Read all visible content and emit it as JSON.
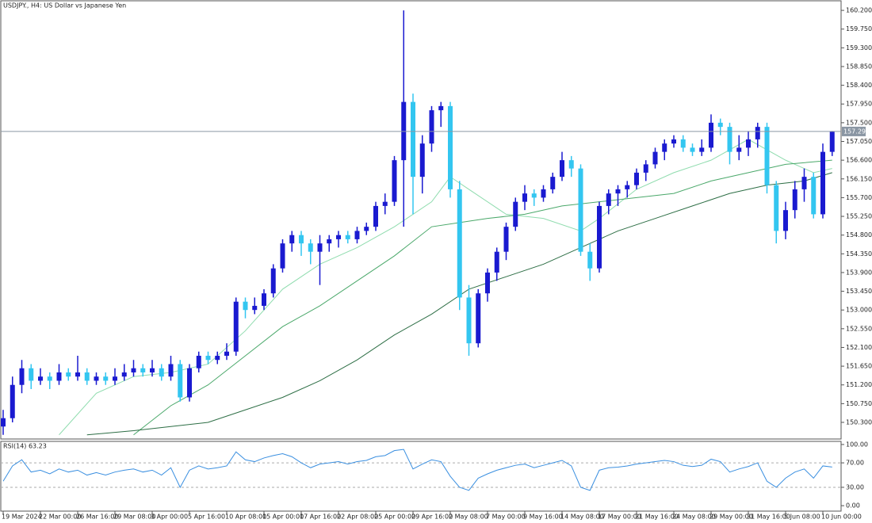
{
  "chart_data": [
    {
      "type": "candlestick",
      "title": "USDJPY., H4:  US Dollar vs Japanese Yen",
      "up_color": "#1a1ad0",
      "down_color": "#33c6f0",
      "categories": [
        "19 Mar 2024",
        null,
        null,
        null,
        "22 Mar 00:00",
        null,
        null,
        null,
        "26 Mar 16:00",
        null,
        null,
        null,
        "29 Mar 08:00",
        null,
        null,
        null,
        "3 Apr 00:00",
        null,
        null,
        null,
        "5 Apr 16:00",
        null,
        null,
        null,
        "10 Apr 08:00",
        null,
        null,
        null,
        "15 Apr 00:00",
        null,
        null,
        null,
        "17 Apr 16:00",
        null,
        null,
        null,
        "22 Apr 08:00",
        null,
        null,
        null,
        "25 Apr 00:00",
        null,
        null,
        null,
        "29 Apr 16:00",
        null,
        null,
        null,
        "2 May 08:00",
        null,
        null,
        null,
        "7 May 00:00",
        null,
        null,
        null,
        "9 May 16:00",
        null,
        null,
        null,
        "14 May 08:00",
        null,
        null,
        null,
        "17 May 00:00",
        null,
        null,
        null,
        "21 May 16:00",
        null,
        null,
        null,
        "24 May 08:00",
        null,
        null,
        null,
        "29 May 00:00",
        null,
        null,
        null,
        "31 May 16:00",
        null,
        null,
        null,
        "5 Jun 08:00",
        null,
        null,
        null,
        "10 Jun 00:00",
        null
      ],
      "candles": [
        [
          150.2,
          150.6,
          150.0,
          150.4
        ],
        [
          150.4,
          151.4,
          150.3,
          151.2
        ],
        [
          151.2,
          151.8,
          151.0,
          151.6
        ],
        [
          151.6,
          151.7,
          151.1,
          151.3
        ],
        [
          151.3,
          151.6,
          151.2,
          151.4
        ],
        [
          151.4,
          151.5,
          151.1,
          151.3
        ],
        [
          151.3,
          151.7,
          151.2,
          151.5
        ],
        [
          151.5,
          151.6,
          151.3,
          151.4
        ],
        [
          151.4,
          151.9,
          151.3,
          151.5
        ],
        [
          151.5,
          151.6,
          151.2,
          151.3
        ],
        [
          151.3,
          151.5,
          151.2,
          151.4
        ],
        [
          151.4,
          151.5,
          151.2,
          151.3
        ],
        [
          151.3,
          151.6,
          151.2,
          151.4
        ],
        [
          151.4,
          151.7,
          151.3,
          151.5
        ],
        [
          151.5,
          151.8,
          151.4,
          151.6
        ],
        [
          151.6,
          151.7,
          151.4,
          151.5
        ],
        [
          151.5,
          151.8,
          151.4,
          151.6
        ],
        [
          151.6,
          151.7,
          151.3,
          151.4
        ],
        [
          151.4,
          151.9,
          151.3,
          151.7
        ],
        [
          151.7,
          151.8,
          150.8,
          150.9
        ],
        [
          150.9,
          151.7,
          150.8,
          151.6
        ],
        [
          151.6,
          152.0,
          151.5,
          151.9
        ],
        [
          151.9,
          152.0,
          151.7,
          151.8
        ],
        [
          151.8,
          152.0,
          151.7,
          151.9
        ],
        [
          151.9,
          152.2,
          151.8,
          152.0
        ],
        [
          152.0,
          153.3,
          151.9,
          153.2
        ],
        [
          153.2,
          153.3,
          152.8,
          153.0
        ],
        [
          153.0,
          153.3,
          152.9,
          153.1
        ],
        [
          153.1,
          153.5,
          153.0,
          153.4
        ],
        [
          153.4,
          154.1,
          153.3,
          154.0
        ],
        [
          154.0,
          154.7,
          153.9,
          154.6
        ],
        [
          154.6,
          154.9,
          154.4,
          154.8
        ],
        [
          154.8,
          154.9,
          154.3,
          154.6
        ],
        [
          154.6,
          154.7,
          154.1,
          154.4
        ],
        [
          154.4,
          154.8,
          153.6,
          154.6
        ],
        [
          154.6,
          154.8,
          154.4,
          154.7
        ],
        [
          154.7,
          154.9,
          154.5,
          154.8
        ],
        [
          154.8,
          154.9,
          154.6,
          154.7
        ],
        [
          154.7,
          155.0,
          154.6,
          154.9
        ],
        [
          154.9,
          155.1,
          154.8,
          155.0
        ],
        [
          155.0,
          155.6,
          154.9,
          155.5
        ],
        [
          155.5,
          155.8,
          155.3,
          155.6
        ],
        [
          155.6,
          156.7,
          155.5,
          156.6
        ],
        [
          156.6,
          160.2,
          155.0,
          158.0
        ],
        [
          158.0,
          158.2,
          155.3,
          156.2
        ],
        [
          156.2,
          157.2,
          155.8,
          157.0
        ],
        [
          157.0,
          157.9,
          156.8,
          157.8
        ],
        [
          157.8,
          158.0,
          157.4,
          157.9
        ],
        [
          157.9,
          158.0,
          155.7,
          155.9
        ],
        [
          155.9,
          156.1,
          153.0,
          153.3
        ],
        [
          153.3,
          153.6,
          151.9,
          152.2
        ],
        [
          152.2,
          153.5,
          152.1,
          153.4
        ],
        [
          153.4,
          154.0,
          153.2,
          153.9
        ],
        [
          153.9,
          154.5,
          153.7,
          154.4
        ],
        [
          154.4,
          155.1,
          154.2,
          155.0
        ],
        [
          155.0,
          155.7,
          154.9,
          155.6
        ],
        [
          155.6,
          156.0,
          155.4,
          155.8
        ],
        [
          155.8,
          155.9,
          155.5,
          155.7
        ],
        [
          155.7,
          156.0,
          155.6,
          155.9
        ],
        [
          155.9,
          156.3,
          155.8,
          156.2
        ],
        [
          156.2,
          156.8,
          156.1,
          156.6
        ],
        [
          156.6,
          156.7,
          156.2,
          156.4
        ],
        [
          156.4,
          156.5,
          154.3,
          154.4
        ],
        [
          154.4,
          154.6,
          153.7,
          154.0
        ],
        [
          154.0,
          155.6,
          153.9,
          155.5
        ],
        [
          155.5,
          155.9,
          155.3,
          155.8
        ],
        [
          155.8,
          156.0,
          155.5,
          155.9
        ],
        [
          155.9,
          156.1,
          155.7,
          156.0
        ],
        [
          156.0,
          156.4,
          155.9,
          156.3
        ],
        [
          156.3,
          156.6,
          156.1,
          156.5
        ],
        [
          156.5,
          156.9,
          156.4,
          156.8
        ],
        [
          156.8,
          157.1,
          156.6,
          157.0
        ],
        [
          157.0,
          157.2,
          156.9,
          157.1
        ],
        [
          157.1,
          157.2,
          156.8,
          156.9
        ],
        [
          156.9,
          157.0,
          156.7,
          156.8
        ],
        [
          156.8,
          157.1,
          156.7,
          156.9
        ],
        [
          156.9,
          157.7,
          156.8,
          157.5
        ],
        [
          157.5,
          157.6,
          157.2,
          157.4
        ],
        [
          157.4,
          157.5,
          156.5,
          156.8
        ],
        [
          156.8,
          157.2,
          156.6,
          156.9
        ],
        [
          156.9,
          157.3,
          156.7,
          157.1
        ],
        [
          157.1,
          157.5,
          156.9,
          157.4
        ],
        [
          157.4,
          157.5,
          155.8,
          156.0
        ],
        [
          156.0,
          156.1,
          154.6,
          154.9
        ],
        [
          154.9,
          155.6,
          154.7,
          155.4
        ],
        [
          155.4,
          156.1,
          155.2,
          155.9
        ],
        [
          155.9,
          156.4,
          155.6,
          156.2
        ],
        [
          156.2,
          156.3,
          155.2,
          155.3
        ],
        [
          155.3,
          157.0,
          155.2,
          156.8
        ],
        [
          156.8,
          157.3,
          156.7,
          157.29
        ]
      ],
      "moving_averages": [
        {
          "color": "#8fdcae",
          "x": [
            6,
            10,
            14,
            18,
            22,
            26,
            30,
            34,
            38,
            42,
            46,
            48,
            50,
            54,
            58,
            62,
            64,
            68,
            72,
            76,
            80,
            84,
            87,
            89
          ],
          "values": [
            150.0,
            151.0,
            151.4,
            151.5,
            151.7,
            152.5,
            153.5,
            154.1,
            154.5,
            155.0,
            155.6,
            156.2,
            155.9,
            155.3,
            155.2,
            154.9,
            155.2,
            155.9,
            156.3,
            156.6,
            157.1,
            156.6,
            156.3,
            156.4
          ]
        },
        {
          "color": "#4aa86a",
          "x": [
            14,
            18,
            22,
            26,
            30,
            34,
            38,
            42,
            46,
            49,
            52,
            56,
            60,
            64,
            68,
            72,
            76,
            80,
            84,
            89
          ],
          "values": [
            150.0,
            150.7,
            151.2,
            151.9,
            152.6,
            153.1,
            153.7,
            154.3,
            155.0,
            155.1,
            155.2,
            155.3,
            155.5,
            155.6,
            155.7,
            155.8,
            156.1,
            156.3,
            156.5,
            156.6
          ]
        },
        {
          "color": "#2d6e45",
          "x": [
            9,
            14,
            18,
            22,
            26,
            30,
            34,
            38,
            42,
            46,
            50,
            54,
            58,
            62,
            66,
            70,
            74,
            78,
            82,
            86,
            89
          ],
          "values": [
            150.0,
            150.1,
            150.2,
            150.3,
            150.6,
            150.9,
            151.3,
            151.8,
            152.4,
            152.9,
            153.5,
            153.8,
            154.1,
            154.5,
            154.9,
            155.2,
            155.5,
            155.8,
            156.0,
            156.1,
            156.3
          ]
        }
      ],
      "current_price": {
        "value": 157.29,
        "label": "157.290"
      },
      "ylim": [
        149.9,
        160.43
      ],
      "yticks": [
        {
          "value": 150.3,
          "label": "150.300"
        },
        {
          "value": 150.75,
          "label": "150.750"
        },
        {
          "value": 151.2,
          "label": "151.200"
        },
        {
          "value": 151.65,
          "label": "151.650"
        },
        {
          "value": 152.1,
          "label": "152.100"
        },
        {
          "value": 152.55,
          "label": "152.550"
        },
        {
          "value": 153.0,
          "label": "153.000"
        },
        {
          "value": 153.45,
          "label": "153.450"
        },
        {
          "value": 153.9,
          "label": "153.900"
        },
        {
          "value": 154.35,
          "label": "154.350"
        },
        {
          "value": 154.8,
          "label": "154.800"
        },
        {
          "value": 155.25,
          "label": "155.250"
        },
        {
          "value": 155.7,
          "label": "155.700"
        },
        {
          "value": 156.15,
          "label": "156.150"
        },
        {
          "value": 156.6,
          "label": "156.600"
        },
        {
          "value": 157.05,
          "label": "157.050"
        },
        {
          "value": 157.5,
          "label": "157.500"
        },
        {
          "value": 157.95,
          "label": "157.950"
        },
        {
          "value": 158.4,
          "label": "158.400"
        },
        {
          "value": 158.85,
          "label": "158.850"
        },
        {
          "value": 159.3,
          "label": "159.300"
        },
        {
          "value": 159.75,
          "label": "159.750"
        },
        {
          "value": 160.2,
          "label": "160.200"
        }
      ]
    },
    {
      "type": "line",
      "title": "RSI(14) 63.23",
      "color": "#3a8fe0",
      "values": [
        40,
        65,
        75,
        55,
        58,
        52,
        60,
        55,
        58,
        50,
        54,
        50,
        55,
        58,
        60,
        55,
        58,
        50,
        62,
        30,
        58,
        65,
        60,
        62,
        65,
        88,
        75,
        72,
        78,
        82,
        85,
        80,
        70,
        62,
        68,
        70,
        72,
        68,
        72,
        74,
        80,
        82,
        90,
        92,
        60,
        68,
        75,
        72,
        48,
        30,
        25,
        45,
        52,
        58,
        62,
        66,
        68,
        62,
        66,
        70,
        74,
        65,
        30,
        25,
        58,
        62,
        63,
        65,
        68,
        70,
        72,
        74,
        72,
        66,
        64,
        66,
        76,
        72,
        55,
        60,
        64,
        70,
        40,
        30,
        45,
        55,
        60,
        45,
        65,
        63.23
      ],
      "levels": [
        70,
        30
      ],
      "ylim": [
        -8.9,
        105.1
      ],
      "yticks": [
        {
          "value": 100,
          "label": "100.00"
        },
        {
          "value": 70,
          "label": "70.00"
        },
        {
          "value": 30,
          "label": "30.00"
        },
        {
          "value": 0,
          "label": "0.00"
        }
      ]
    }
  ]
}
